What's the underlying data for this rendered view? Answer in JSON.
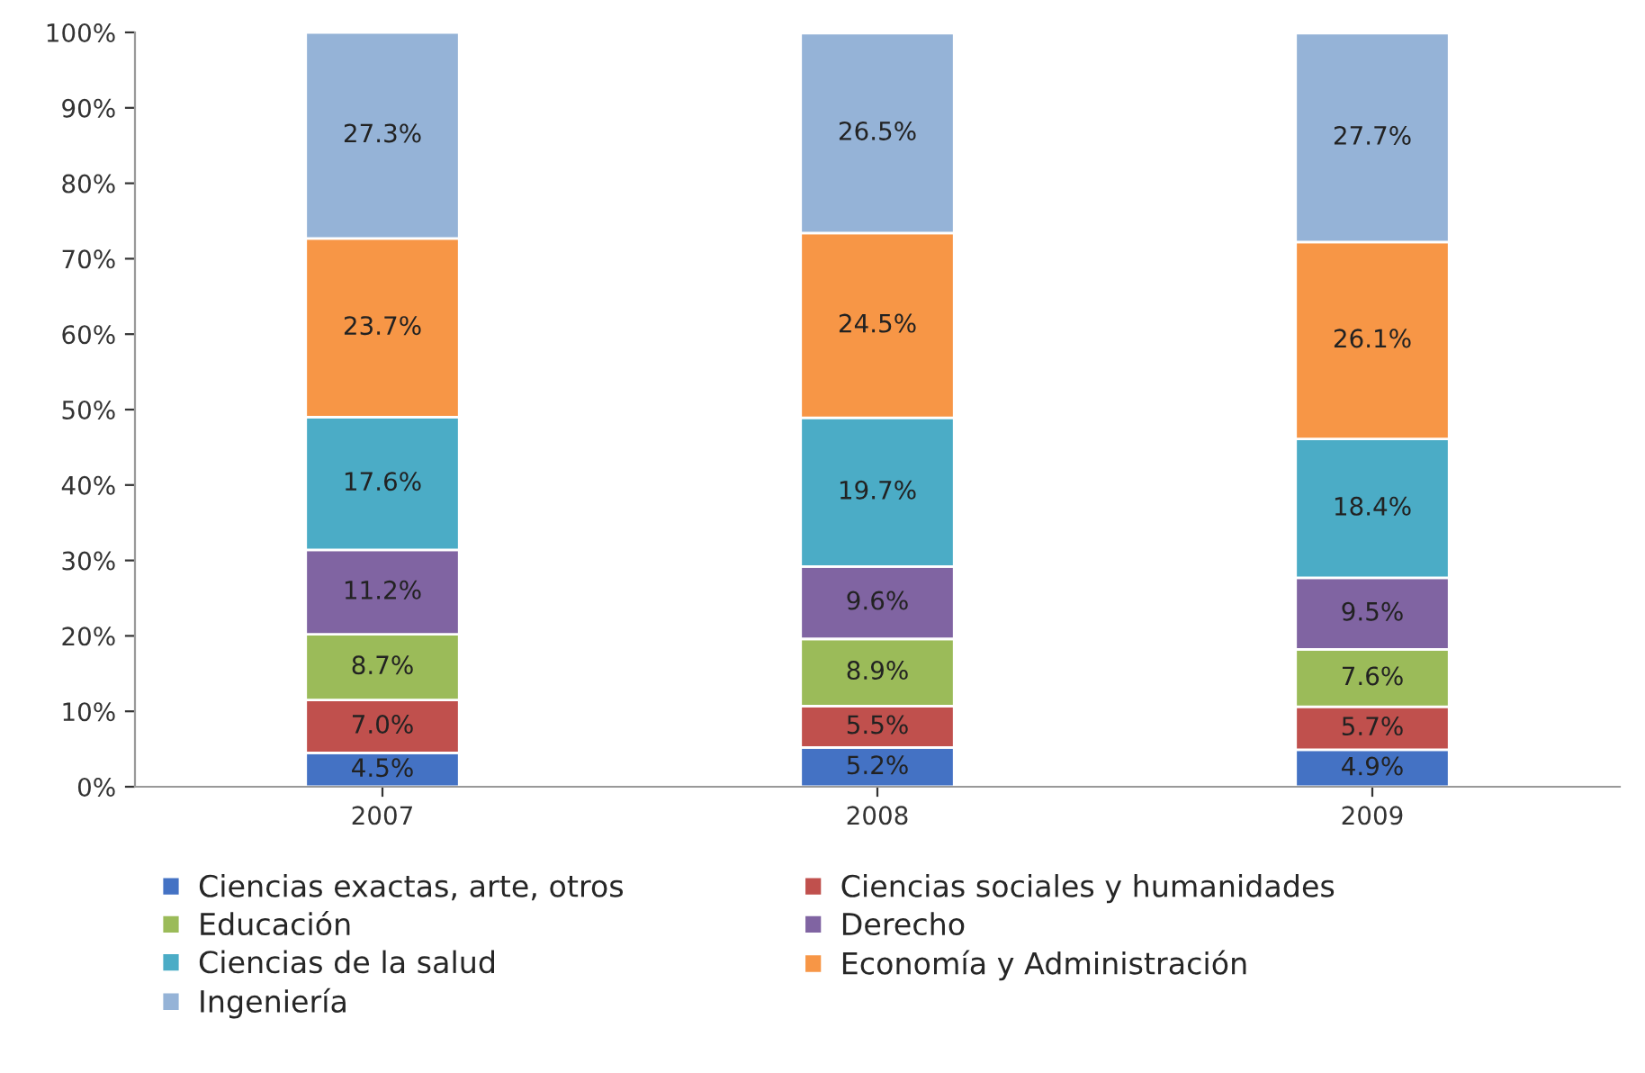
{
  "chart_data": {
    "type": "bar",
    "stacked": true,
    "categories": [
      "2007",
      "2008",
      "2009"
    ],
    "series": [
      {
        "name": "Ciencias exactas, arte, otros",
        "color": "#4472c4",
        "values": [
          4.5,
          5.2,
          4.9
        ],
        "value_labels": [
          "4.5%",
          "5.2%",
          "4.9%"
        ]
      },
      {
        "name": "Ciencias sociales y humanidades",
        "color": "#c0504d",
        "values": [
          7.0,
          5.5,
          5.7
        ],
        "value_labels": [
          "7.0%",
          "5.5%",
          "5.7%"
        ]
      },
      {
        "name": "Educación",
        "color": "#9bbb59",
        "values": [
          8.7,
          8.9,
          7.6
        ],
        "value_labels": [
          "8.7%",
          "8.9%",
          "7.6%"
        ]
      },
      {
        "name": "Derecho",
        "color": "#8064a2",
        "values": [
          11.2,
          9.6,
          9.5
        ],
        "value_labels": [
          "11.2%",
          "9.6%",
          "9.5%"
        ]
      },
      {
        "name": "Ciencias de la salud",
        "color": "#4bacc6",
        "values": [
          17.6,
          19.7,
          18.4
        ],
        "value_labels": [
          "17.6%",
          "19.7%",
          "18.4%"
        ]
      },
      {
        "name": "Economía y Administración",
        "color": "#f79646",
        "values": [
          23.7,
          24.5,
          26.1
        ],
        "value_labels": [
          "23.7%",
          "24.5%",
          "26.1%"
        ]
      },
      {
        "name": "Ingeniería",
        "color": "#95b3d7",
        "values": [
          27.3,
          26.5,
          27.7
        ],
        "value_labels": [
          "27.3%",
          "26.5%",
          "27.7%"
        ]
      }
    ],
    "ylim": [
      0,
      100
    ],
    "yticks": [
      {
        "value": 0,
        "label": "0%"
      },
      {
        "value": 10,
        "label": "10%"
      },
      {
        "value": 20,
        "label": "20%"
      },
      {
        "value": 30,
        "label": "30%"
      },
      {
        "value": 40,
        "label": "40%"
      },
      {
        "value": 50,
        "label": "50%"
      },
      {
        "value": 60,
        "label": "60%"
      },
      {
        "value": 70,
        "label": "70%"
      },
      {
        "value": 80,
        "label": "80%"
      },
      {
        "value": 90,
        "label": "90%"
      },
      {
        "value": 100,
        "label": "100%"
      }
    ],
    "grid": false,
    "legend": "bottom"
  }
}
